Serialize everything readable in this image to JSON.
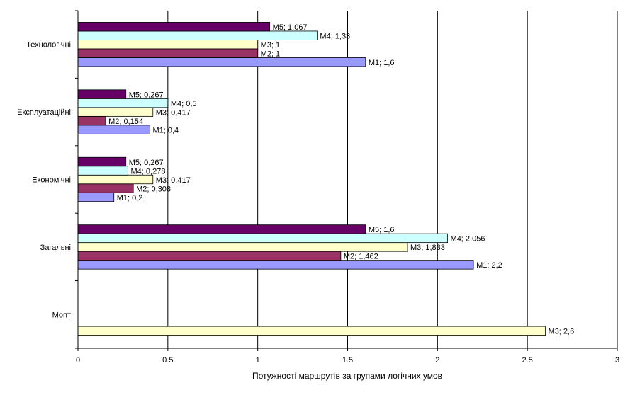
{
  "chart_data": {
    "type": "bar",
    "orientation": "horizontal",
    "categories": [
      "Технологічні",
      "Експлуатаційні",
      "Економічні",
      "Загальні",
      "Мопт"
    ],
    "series": [
      {
        "name": "M1",
        "color": "#9999ff",
        "values": [
          1.6,
          0.4,
          0.2,
          2.2,
          null
        ]
      },
      {
        "name": "M2",
        "color": "#993366",
        "values": [
          1,
          0.154,
          0.308,
          1.462,
          null
        ]
      },
      {
        "name": "M3",
        "color": "#ffffcc",
        "values": [
          1,
          0.417,
          0.417,
          1.833,
          2.6
        ]
      },
      {
        "name": "M4",
        "color": "#ccffff",
        "values": [
          1.33,
          0.5,
          0.278,
          2.056,
          null
        ]
      },
      {
        "name": "M5",
        "color": "#660066",
        "values": [
          1.067,
          0.267,
          0.267,
          1.6,
          null
        ]
      }
    ],
    "data_labels": [
      [
        "M1; 1,6",
        "M1; 0,4",
        "M1; 0,2",
        "M1; 2,2",
        ""
      ],
      [
        "M2; 1",
        "M2; 0,154",
        "M2; 0,308",
        "M2; 1,462",
        ""
      ],
      [
        "M3; 1",
        "M3; 0,417",
        "M3; 0,417",
        "M3; 1,833",
        "M3; 2,6"
      ],
      [
        "M4; 1,33",
        "M4; 0,5",
        "M4; 0,278",
        "M4; 2,056",
        ""
      ],
      [
        "M5; 1,067",
        "M5; 0,267",
        "M5; 0,267",
        "M5; 1,6",
        ""
      ]
    ],
    "x_ticks": [
      "0",
      "0.5",
      "1",
      "1.5",
      "2",
      "2.5",
      "3"
    ],
    "xlim": [
      0,
      3
    ],
    "xlabel": "Потужності маршрутів за групами логічних умов",
    "ylabel": "",
    "title": "",
    "grid": "vertical major gridlines",
    "legend": "none"
  }
}
